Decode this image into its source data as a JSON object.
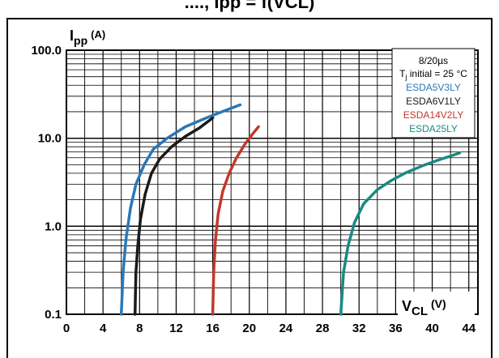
{
  "header_fragment": "...., Ipp = f(VCL)",
  "chart_data": {
    "type": "line",
    "y_scale": "log",
    "grid": true,
    "legend_placement": "top-right",
    "ylabel_main": "I",
    "ylabel_sub": "pp",
    "ylabel_unit": "(A)",
    "xlabel_main": "V",
    "xlabel_sub": "CL",
    "xlabel_unit": "(V)",
    "xlim": [
      0,
      45
    ],
    "ylim": [
      0.1,
      100
    ],
    "x_ticks": [
      "0",
      "4",
      "8",
      "12",
      "16",
      "20",
      "24",
      "28",
      "32",
      "36",
      "40",
      "44"
    ],
    "y_ticks": [
      "100.0",
      "10.0",
      "1.0",
      "0.1"
    ],
    "legend_header_1": "8/20µs",
    "legend_header_2_main": "T",
    "legend_header_2_sub": "j",
    "legend_header_2_rest": " initial = 25 °C",
    "series": [
      {
        "name": "ESDA5V3LY",
        "color": "#2b77b7",
        "x": [
          6.0,
          6.2,
          6.5,
          7.0,
          7.6,
          8.5,
          9.5,
          11.0,
          13.0,
          15.0,
          17.0,
          19.0
        ],
        "y": [
          0.1,
          0.3,
          0.7,
          1.6,
          3.0,
          5.0,
          7.5,
          10.0,
          13.5,
          16.5,
          20.0,
          24.0
        ]
      },
      {
        "name": "ESDA6V1LY",
        "color": "#1a1a1a",
        "x": [
          7.5,
          7.6,
          7.8,
          8.1,
          8.6,
          9.3,
          10.2,
          11.5,
          13.0,
          14.5,
          16.0
        ],
        "y": [
          0.1,
          0.3,
          0.6,
          1.2,
          2.3,
          4.0,
          5.8,
          8.0,
          10.5,
          13.0,
          17.0
        ]
      },
      {
        "name": "ESDA14V2LY",
        "color": "#c0392b",
        "x": [
          16.0,
          16.1,
          16.3,
          16.6,
          17.1,
          17.8,
          18.6,
          19.5,
          20.3,
          21.0
        ],
        "y": [
          0.1,
          0.3,
          0.7,
          1.4,
          2.5,
          4.0,
          6.0,
          8.5,
          11.0,
          13.5
        ]
      },
      {
        "name": "ESDA25LY",
        "color": "#1a8a80",
        "x": [
          30.0,
          30.3,
          30.8,
          31.5,
          32.5,
          34.0,
          35.5,
          37.0,
          39.0,
          41.0,
          43.0
        ],
        "y": [
          0.1,
          0.3,
          0.6,
          1.1,
          1.8,
          2.6,
          3.3,
          4.0,
          4.9,
          5.8,
          6.8
        ]
      }
    ]
  }
}
